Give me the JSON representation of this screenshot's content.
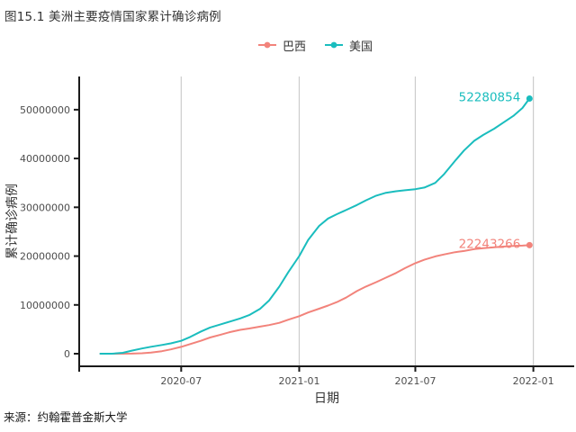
{
  "title": "图15.1 美洲主要疫情国家累计确诊病例",
  "source_note": "来源：约翰霍普金斯大学",
  "colors": {
    "brazil": "#F2837B",
    "usa": "#1ABDBE",
    "gridline": "#CCCCCC",
    "axis": "#1A1A1A",
    "tick_label": "#4D4D4D"
  },
  "chart_data": {
    "type": "line",
    "title": "图15.1 美洲主要疫情国家累计确诊病例",
    "xlabel": "日期",
    "ylabel": "累计确诊病例",
    "legend_position": "top-center",
    "grid": "vertical-only",
    "x_range_dates": [
      "2020-01-24",
      "2022-01-31"
    ],
    "y_range": [
      -2580000,
      56800000
    ],
    "x_tick_dates": [
      "2020-07-01",
      "2021-01-01",
      "2021-07-01",
      "2022-01-01"
    ],
    "x_tick_labels": [
      "2020-07",
      "2021-01",
      "2021-07",
      "2022-01"
    ],
    "y_tick_values": [
      0,
      10000000,
      20000000,
      30000000,
      40000000,
      50000000
    ],
    "y_tick_labels": [
      "0",
      "10000000",
      "20000000",
      "30000000",
      "40000000",
      "50000000"
    ],
    "x": [
      "2020-02-26",
      "2020-03-15",
      "2020-04-01",
      "2020-04-15",
      "2020-05-01",
      "2020-05-15",
      "2020-06-01",
      "2020-06-15",
      "2020-07-01",
      "2020-07-15",
      "2020-08-01",
      "2020-08-15",
      "2020-09-01",
      "2020-09-15",
      "2020-10-01",
      "2020-10-15",
      "2020-11-01",
      "2020-11-15",
      "2020-12-01",
      "2020-12-15",
      "2021-01-01",
      "2021-01-15",
      "2021-02-01",
      "2021-02-15",
      "2021-03-01",
      "2021-03-15",
      "2021-04-01",
      "2021-04-15",
      "2021-05-01",
      "2021-05-15",
      "2021-06-01",
      "2021-06-15",
      "2021-07-01",
      "2021-07-15",
      "2021-08-01",
      "2021-08-15",
      "2021-09-01",
      "2021-09-15",
      "2021-10-01",
      "2021-10-15",
      "2021-11-01",
      "2021-11-15",
      "2021-12-01",
      "2021-12-15",
      "2021-12-26"
    ],
    "series": [
      {
        "key": "brazil",
        "name": "巴西",
        "color": "#F2837B",
        "end_label": "22243266",
        "values": [
          1,
          162,
          5717,
          28320,
          87187,
          218223,
          514849,
          888271,
          1402041,
          1966748,
          2662485,
          3317096,
          3908272,
          4419083,
          4880523,
          5169386,
          5545705,
          5863093,
          6335878,
          6970034,
          7700578,
          8455059,
          9229322,
          9866710,
          10587001,
          11483370,
          12839844,
          13758093,
          14659011,
          15519525,
          16545554,
          17533221,
          18557141,
          19262518,
          19938358,
          20350142,
          20804215,
          21034610,
          21427073,
          21627476,
          21810855,
          21940950,
          22084749,
          22157726,
          22243266
        ]
      },
      {
        "key": "usa",
        "name": "美国",
        "color": "#1ABDBE",
        "end_label": "52280854",
        "values": [
          60,
          3499,
          189633,
          632781,
          1069534,
          1417889,
          1790191,
          2114026,
          2635538,
          3431574,
          4562170,
          5360302,
          6031013,
          6588029,
          7233043,
          7910901,
          9207364,
          10906068,
          13750921,
          16735292,
          20005709,
          23313885,
          26185916,
          27702258,
          28605670,
          29438775,
          30459797,
          31421360,
          32392274,
          32937674,
          33290793,
          33497137,
          33713535,
          34041068,
          35007470,
          36805063,
          39538796,
          41636366,
          43628501,
          44836152,
          46108207,
          47348184,
          48732976,
          50343051,
          52280854
        ]
      }
    ]
  }
}
